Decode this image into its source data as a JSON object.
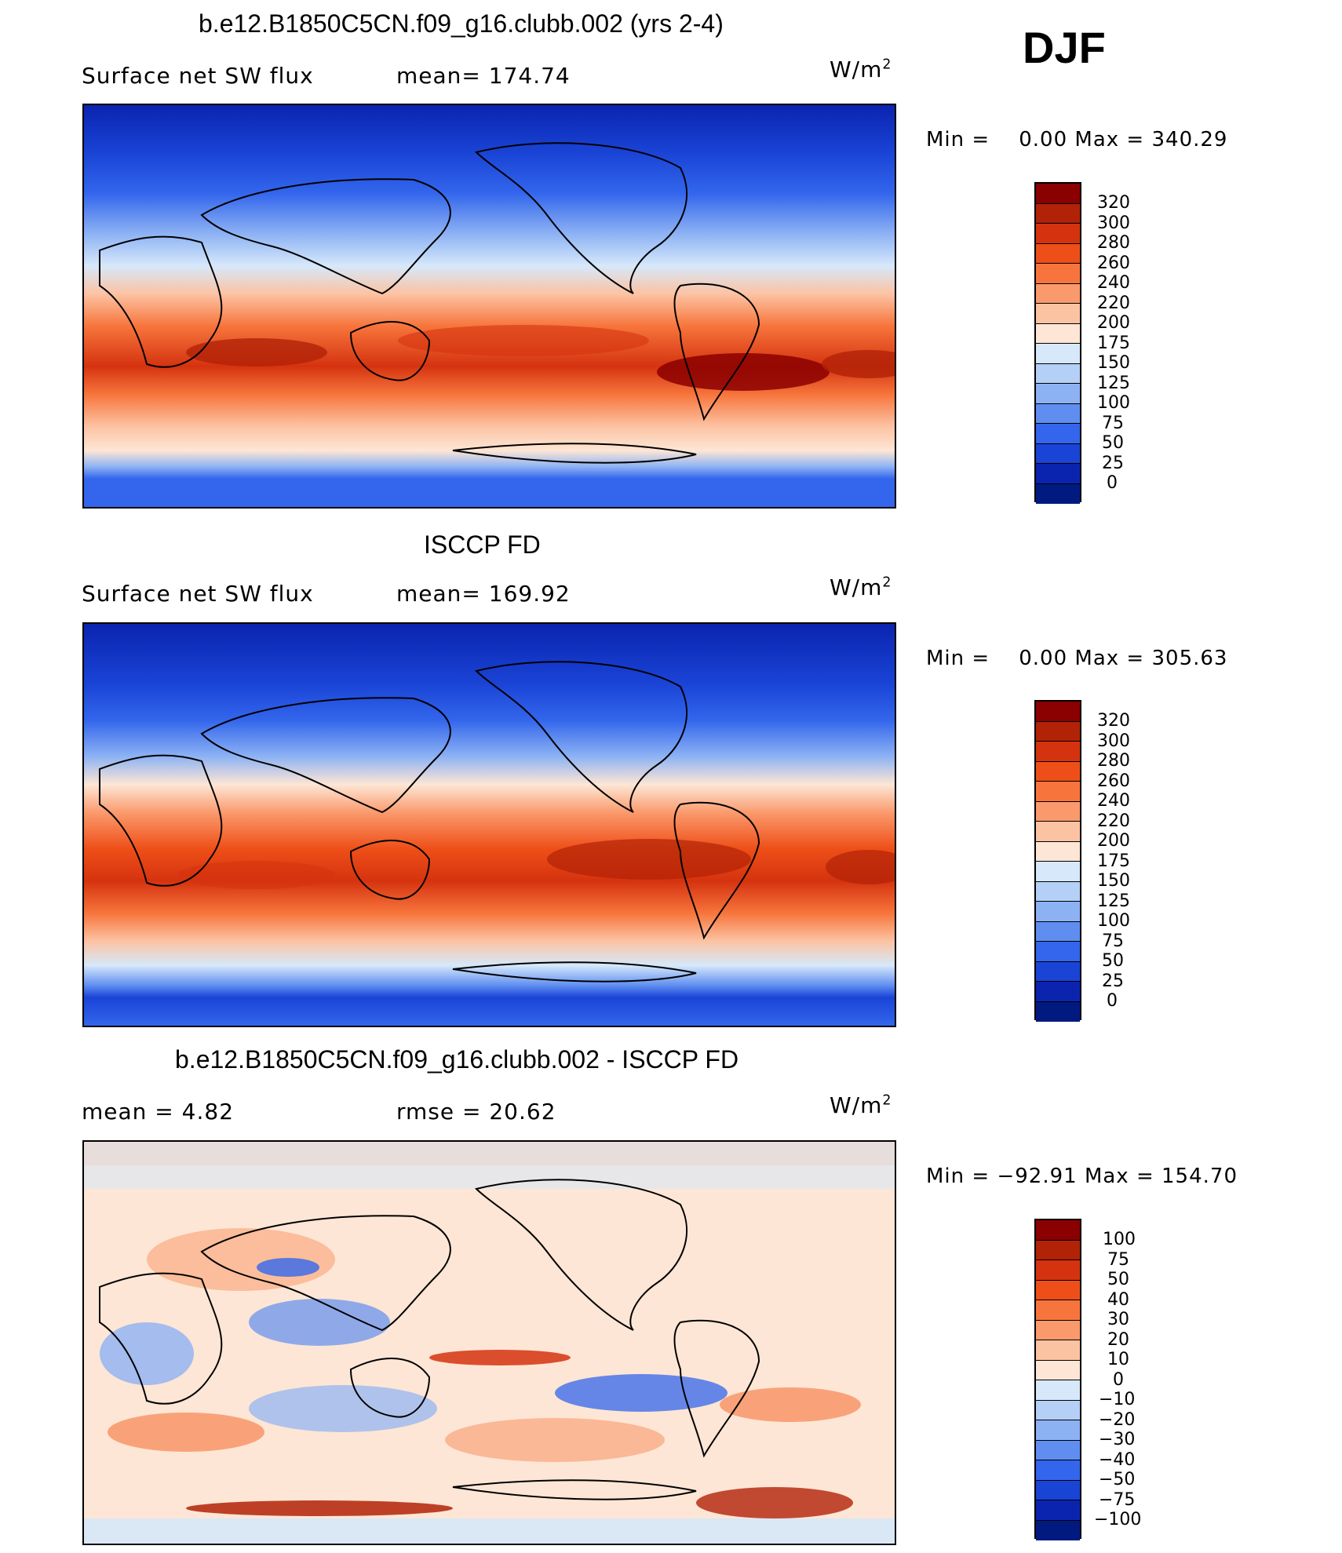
{
  "season": "DJF",
  "panels": [
    {
      "title": "b.e12.B1850C5CN.f09_g16.clubb.002 (yrs 2-4)",
      "left_label": "Surface net SW flux",
      "center_label": "mean=  174.74",
      "units_base": "W/m",
      "units_exp": "2",
      "min_label": "Min =",
      "min_value": "0.00",
      "max_label": "Max =",
      "max_value": "340.29",
      "colorbar_labels": [
        "320",
        "300",
        "280",
        "260",
        "240",
        "220",
        "200",
        "175",
        "150",
        "125",
        "100",
        "75",
        "50",
        "25",
        "0"
      ],
      "colorbar_colors": [
        "#8b0000",
        "#b22207",
        "#d5330f",
        "#ee4f18",
        "#f7753c",
        "#fa9a6c",
        "#fcc3a3",
        "#fde6d5",
        "#d6e8fa",
        "#b5d0f7",
        "#8db2f4",
        "#5f8ef0",
        "#3366ec",
        "#1a44d6",
        "#0a24b0",
        "#001a80"
      ]
    },
    {
      "title": "ISCCP FD",
      "left_label": "Surface net SW flux",
      "center_label": "mean=  169.92",
      "units_base": "W/m",
      "units_exp": "2",
      "min_label": "Min =",
      "min_value": "0.00",
      "max_label": "Max =",
      "max_value": "305.63",
      "colorbar_labels": [
        "320",
        "300",
        "280",
        "260",
        "240",
        "220",
        "200",
        "175",
        "150",
        "125",
        "100",
        "75",
        "50",
        "25",
        "0"
      ],
      "colorbar_colors": [
        "#8b0000",
        "#b22207",
        "#d5330f",
        "#ee4f18",
        "#f7753c",
        "#fa9a6c",
        "#fcc3a3",
        "#fde6d5",
        "#d6e8fa",
        "#b5d0f7",
        "#8db2f4",
        "#5f8ef0",
        "#3366ec",
        "#1a44d6",
        "#0a24b0",
        "#001a80"
      ]
    },
    {
      "title": "b.e12.B1850C5CN.f09_g16.clubb.002 - ISCCP FD",
      "left_label": "mean =    4.82",
      "center_label": "rmse =   20.62",
      "units_base": "W/m",
      "units_exp": "2",
      "min_label": "Min =",
      "min_value": "−92.91",
      "max_label": "Max =",
      "max_value": "154.70",
      "colorbar_labels": [
        "100",
        "75",
        "50",
        "40",
        "30",
        "20",
        "10",
        "0",
        "−10",
        "−20",
        "−30",
        "−40",
        "−50",
        "−75",
        "−100"
      ],
      "colorbar_colors": [
        "#8b0000",
        "#b22207",
        "#d5330f",
        "#ee4f18",
        "#f7753c",
        "#fa9a6c",
        "#fcc3a3",
        "#fde6d5",
        "#d6e8fa",
        "#b5d0f7",
        "#8db2f4",
        "#5f8ef0",
        "#3366ec",
        "#1a44d6",
        "#0a24b0",
        "#001a80"
      ]
    }
  ]
}
